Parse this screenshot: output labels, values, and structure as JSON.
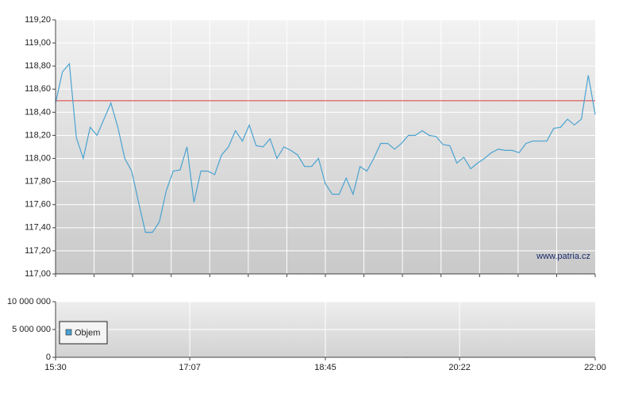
{
  "chart_data": [
    {
      "type": "line",
      "x": [
        "15:30",
        "15:35",
        "15:40",
        "15:45",
        "15:50",
        "15:55",
        "16:00",
        "16:05",
        "16:10",
        "16:15",
        "16:20",
        "16:25",
        "16:30",
        "16:35",
        "16:40",
        "16:45",
        "16:50",
        "16:55",
        "17:00",
        "17:05",
        "17:10",
        "17:15",
        "17:20",
        "17:25",
        "17:30",
        "17:35",
        "17:40",
        "17:45",
        "17:50",
        "17:55",
        "18:00",
        "18:05",
        "18:10",
        "18:15",
        "18:20",
        "18:25",
        "18:30",
        "18:35",
        "18:40",
        "18:45",
        "18:50",
        "18:55",
        "19:00",
        "19:05",
        "19:10",
        "19:15",
        "19:20",
        "19:25",
        "19:30",
        "19:35",
        "19:40",
        "19:45",
        "19:50",
        "19:55",
        "20:00",
        "20:05",
        "20:10",
        "20:15",
        "20:20",
        "20:25",
        "20:30",
        "20:35",
        "20:40",
        "20:45",
        "20:50",
        "20:55",
        "21:00",
        "21:05",
        "21:10",
        "21:15",
        "21:20",
        "21:25",
        "21:30",
        "21:35",
        "21:40",
        "21:45",
        "21:50",
        "21:55",
        "22:00"
      ],
      "xlim": [
        "15:30",
        "22:00"
      ],
      "series": [
        {
          "color": "#4aa3d1",
          "values": [
            118.48,
            118.75,
            118.82,
            118.18,
            118.0,
            118.27,
            118.2,
            118.34,
            118.48,
            118.27,
            118.0,
            117.89,
            117.62,
            117.36,
            117.36,
            117.45,
            117.72,
            117.89,
            117.9,
            118.1,
            117.62,
            117.89,
            117.89,
            117.86,
            118.03,
            118.1,
            118.24,
            118.15,
            118.29,
            118.11,
            118.1,
            118.17,
            118.0,
            118.1,
            118.07,
            118.03,
            117.93,
            117.93,
            118.0,
            117.78,
            117.69,
            117.69,
            117.83,
            117.69,
            117.93,
            117.89,
            118.0,
            118.13,
            118.13,
            118.08,
            118.13,
            118.2,
            118.2,
            118.24,
            118.2,
            118.19,
            118.12,
            118.11,
            117.96,
            118.01,
            117.91,
            117.96,
            118.0,
            118.05,
            118.08,
            118.07,
            118.07,
            118.05,
            118.13,
            118.15,
            118.15,
            118.15,
            118.26,
            118.27,
            118.34,
            118.29,
            118.34,
            118.72,
            118.38
          ]
        }
      ],
      "reference_lines": [
        {
          "value": 118.5,
          "color": "#e03a3a"
        }
      ],
      "ylim": [
        117,
        119.2
      ],
      "yticks": [
        {
          "value": 117,
          "label": "117,00"
        },
        {
          "value": 117.2,
          "label": "117,20"
        },
        {
          "value": 117.4,
          "label": "117,40"
        },
        {
          "value": 117.6,
          "label": "117,60"
        },
        {
          "value": 117.8,
          "label": "117,80"
        },
        {
          "value": 118,
          "label": "118,00"
        },
        {
          "value": 118.2,
          "label": "118,20"
        },
        {
          "value": 118.4,
          "label": "118,40"
        },
        {
          "value": 118.6,
          "label": "118,60"
        },
        {
          "value": 118.8,
          "label": "118,80"
        },
        {
          "value": 119,
          "label": "119,00"
        },
        {
          "value": 119.2,
          "label": "119,20"
        }
      ],
      "annotation": "www.patria.cz",
      "grid": true
    },
    {
      "type": "bar",
      "x": [
        "19:44"
      ],
      "xlim": [
        "15:30",
        "22:00"
      ],
      "xticks": [
        "15:30",
        "17:07",
        "18:45",
        "20:22",
        "22:00"
      ],
      "series": [
        {
          "name": "Objem",
          "color": "#4aa3d1",
          "values": [
            60000
          ]
        }
      ],
      "ylim": [
        0,
        10000000
      ],
      "yticks": [
        0,
        {
          "value": 5000000,
          "label": "5 000 000"
        },
        {
          "value": 10000000,
          "label": "10 000 000"
        }
      ],
      "legend": "lower left",
      "grid": true
    }
  ]
}
